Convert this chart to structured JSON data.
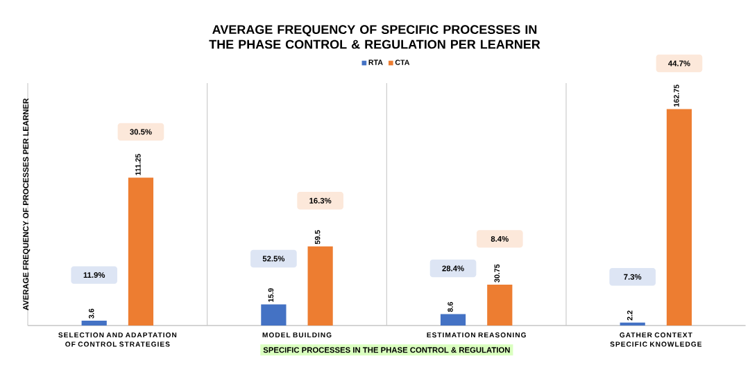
{
  "chart_data": {
    "type": "bar",
    "title": "AVERAGE FREQUENCY OF SPECIFIC PROCESSES IN THE PHASE CONTROL & REGULATION PER LEARNER",
    "xlabel": "SPECIFIC PROCESSES IN THE PHASE CONTROL & REGULATION",
    "ylabel": "AVERAGE FREQUENCY OF PROCESSES PER LEARNER",
    "categories": [
      "SELECTION AND ADAPTATION OF CONTROL STRATEGIES",
      "MODEL BUILDING",
      "ESTIMATION REASONING",
      "GATHER CONTEXT SPECIFIC KNOWLEDGE"
    ],
    "series": [
      {
        "name": "RTA",
        "color": "#4472c4",
        "values": [
          3.6,
          15.9,
          8.6,
          2.2
        ]
      },
      {
        "name": "CTA",
        "color": "#ed7d31",
        "values": [
          111.25,
          59.5,
          30.75,
          162.75
        ]
      }
    ],
    "data_labels": true,
    "annotations": [
      "11.9%",
      "30.5%",
      "52.5%",
      "16.3%",
      "28.4%",
      "8.4%",
      "7.3%",
      "44.7%"
    ],
    "legend": "top",
    "grid": "x"
  }
}
